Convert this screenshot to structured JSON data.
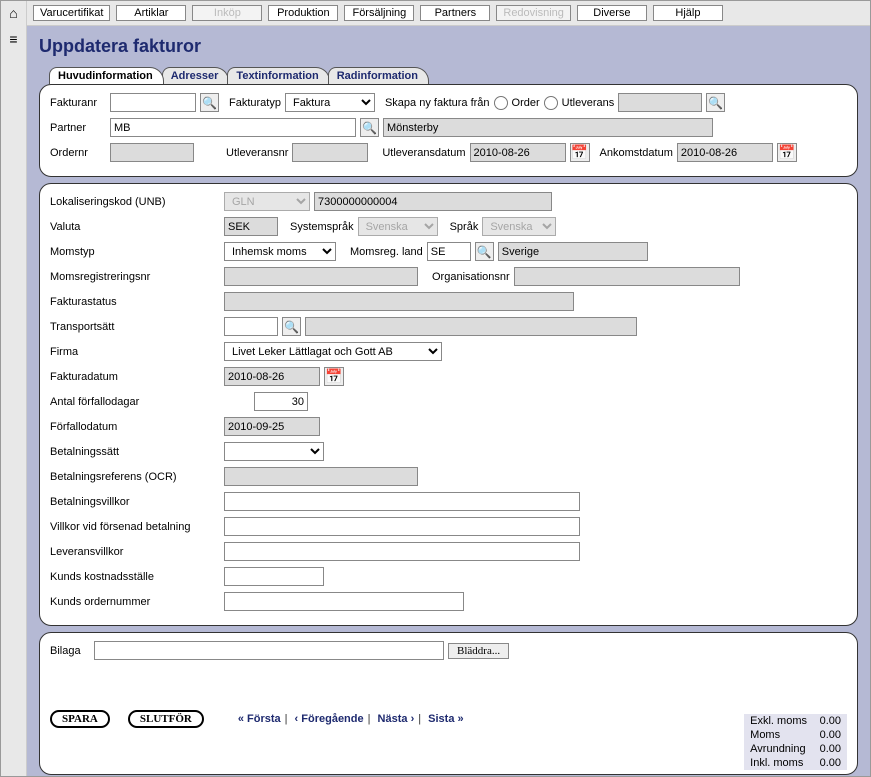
{
  "topnav": {
    "items": [
      {
        "label": "Varucertifikat",
        "disabled": false
      },
      {
        "label": "Artiklar",
        "disabled": false
      },
      {
        "label": "Inköp",
        "disabled": true
      },
      {
        "label": "Produktion",
        "disabled": false
      },
      {
        "label": "Försäljning",
        "disabled": false
      },
      {
        "label": "Partners",
        "disabled": false
      },
      {
        "label": "Redovisning",
        "disabled": true
      },
      {
        "label": "Diverse",
        "disabled": false
      },
      {
        "label": "Hjälp",
        "disabled": false
      }
    ]
  },
  "page_title": "Uppdatera fakturor",
  "tabs": [
    {
      "label": "Huvudinformation",
      "active": true
    },
    {
      "label": "Adresser",
      "active": false
    },
    {
      "label": "Textinformation",
      "active": false
    },
    {
      "label": "Radinformation",
      "active": false
    }
  ],
  "header": {
    "fakturanr_label": "Fakturanr",
    "fakturanr": "",
    "fakturatyp_label": "Fakturatyp",
    "fakturatyp": "Faktura",
    "fakturatyp_options": [
      "Faktura"
    ],
    "skapa_label": "Skapa ny faktura från",
    "skapa_order_label": "Order",
    "skapa_utleverans_label": "Utleverans",
    "skapa_ref": "",
    "partner_label": "Partner",
    "partner_code": "MB",
    "partner_name": "Mönsterby",
    "ordernr_label": "Ordernr",
    "ordernr": "",
    "utleveransnr_label": "Utleveransnr",
    "utleveransnr": "",
    "utleveransdatum_label": "Utleveransdatum",
    "utleveransdatum": "2010-08-26",
    "ankomstdatum_label": "Ankomstdatum",
    "ankomstdatum": "2010-08-26"
  },
  "form": {
    "lokaliseringskod_label": "Lokaliseringskod (UNB)",
    "lokaliseringskod_type": "GLN",
    "lokaliseringskod": "7300000000004",
    "valuta_label": "Valuta",
    "valuta": "SEK",
    "systemsprak_label": "Systemspråk",
    "systemsprak": "Svenska",
    "sprak_label": "Språk",
    "sprak": "Svenska",
    "momstyp_label": "Momstyp",
    "momstyp": "Inhemsk moms",
    "momsreg_land_label": "Momsreg. land",
    "momsreg_land_code": "SE",
    "momsreg_land_name": "Sverige",
    "momsreg_nr_label": "Momsregistreringsnr",
    "momsreg_nr": "",
    "organisationsnr_label": "Organisationsnr",
    "organisationsnr": "",
    "fakturastatus_label": "Fakturastatus",
    "fakturastatus": "",
    "transportsatt_label": "Transportsätt",
    "transportsatt_code": "",
    "transportsatt_name": "",
    "firma_label": "Firma",
    "firma": "Livet Leker Lättlagat och Gott AB",
    "fakturadatum_label": "Fakturadatum",
    "fakturadatum": "2010-08-26",
    "antal_forfallodagar_label": "Antal förfallodagar",
    "antal_forfallodagar": "30",
    "forfallodatum_label": "Förfallodatum",
    "forfallodatum": "2010-09-25",
    "betalningssatt_label": "Betalningssätt",
    "betalningssatt": "",
    "betalningsreferens_label": "Betalningsreferens (OCR)",
    "betalningsreferens": "",
    "betalningsvillkor_label": "Betalningsvillkor",
    "betalningsvillkor": "",
    "villkor_forsenad_label": "Villkor vid försenad betalning",
    "villkor_forsenad": "",
    "leveransvillkor_label": "Leveransvillkor",
    "leveransvillkor": "",
    "kunds_kostnadsstalle_label": "Kunds kostnadsställe",
    "kunds_kostnadsstalle": "",
    "kunds_ordernummer_label": "Kunds ordernummer",
    "kunds_ordernummer": ""
  },
  "footer": {
    "bilaga_label": "Bilaga",
    "bilaga": "",
    "browse_label": "Bläddra...",
    "spara_label": "SPARA",
    "slutfor_label": "SLUTFÖR",
    "nav_first": "« Första",
    "nav_prev": "‹ Föregående",
    "nav_next": "Nästa ›",
    "nav_last": "Sista »"
  },
  "totals": {
    "exkl_moms_label": "Exkl. moms",
    "exkl_moms": "0.00",
    "moms_label": "Moms",
    "moms": "0.00",
    "avrundning_label": "Avrundning",
    "avrundning": "0.00",
    "inkl_moms_label": "Inkl. moms",
    "inkl_moms": "0.00"
  },
  "colors": {
    "bg": "#b5b9d4",
    "panel": "#ffffff",
    "readonly": "#dcdcdc",
    "link": "#1e2a6f"
  }
}
